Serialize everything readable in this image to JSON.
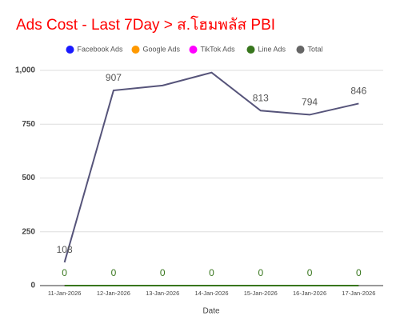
{
  "chart_data": {
    "type": "line",
    "title": "Ads Cost - Last 7Day > ส.โฮมพลัส PBI",
    "x_label": "Date",
    "categories": [
      "11-Jan-2026",
      "12-Jan-2026",
      "13-Jan-2026",
      "14-Jan-2026",
      "15-Jan-2026",
      "16-Jan-2026",
      "17-Jan-2026"
    ],
    "series": [
      {
        "name": "Facebook Ads",
        "color": "#1a1aff",
        "values": [
          0,
          0,
          0,
          0,
          0,
          0,
          0
        ]
      },
      {
        "name": "Google Ads",
        "color": "#ff9900",
        "values": [
          0,
          0,
          0,
          0,
          0,
          0,
          0
        ]
      },
      {
        "name": "TikTok Ads",
        "color": "#ff00ff",
        "values": [
          0,
          0,
          0,
          0,
          0,
          0,
          0
        ]
      },
      {
        "name": "Line Ads",
        "color": "#38761d",
        "values": [
          0,
          0,
          0,
          0,
          0,
          0,
          0
        ],
        "data_labels": true
      },
      {
        "name": "Total",
        "color": "#56547a",
        "values": [
          108,
          907,
          930,
          990,
          813,
          794,
          846
        ],
        "value_labels": [
          "108",
          "907",
          null,
          null,
          "813",
          "794",
          "846"
        ]
      }
    ],
    "ylim": [
      0,
      1000
    ],
    "yticks": [
      0,
      250,
      500,
      750,
      {
        "value": 1000,
        "label": "1,000"
      }
    ],
    "grid": true
  }
}
